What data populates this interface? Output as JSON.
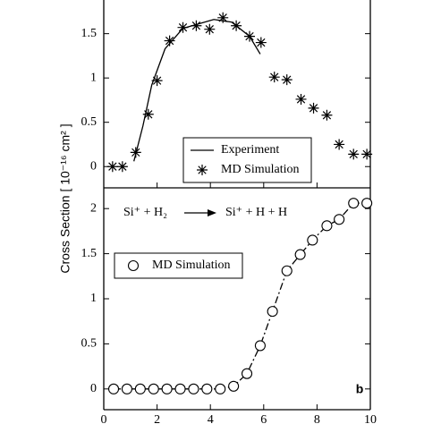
{
  "chart_data": [
    {
      "type": "line",
      "ylabel": "Cross Section [ 10⁻¹⁶ cm² ]",
      "xlim": [
        0,
        10
      ],
      "xticks": [
        0,
        2,
        4,
        6,
        8,
        10
      ],
      "show_xtick_labels": false,
      "ylim": [
        -0.24,
        1.88
      ],
      "yticks": [
        0,
        0.5,
        1,
        1.5
      ],
      "legend": "lower right",
      "series": [
        {
          "name": "Experiment",
          "color": "#000000",
          "marker": "none",
          "line": "solid",
          "x": [
            1.13,
            1.47,
            1.8,
            2.3,
            2.97,
            4.13,
            4.8,
            5.47,
            5.87
          ],
          "values": [
            0.06,
            0.46,
            0.92,
            1.33,
            1.56,
            1.66,
            1.63,
            1.47,
            1.27
          ]
        },
        {
          "name": "MD Simulation",
          "color": "#000000",
          "marker": "star",
          "line": "none",
          "x": [
            0.33,
            0.7,
            1.2,
            1.67,
            2.0,
            2.47,
            2.97,
            3.47,
            3.97,
            4.47,
            4.97,
            5.47,
            5.9,
            6.4,
            6.87,
            7.4,
            7.87,
            8.37,
            8.83,
            9.37,
            9.87
          ],
          "values": [
            0,
            0,
            0.16,
            0.59,
            0.97,
            1.42,
            1.57,
            1.59,
            1.55,
            1.68,
            1.59,
            1.47,
            1.4,
            1.01,
            0.98,
            0.76,
            0.66,
            0.58,
            0.25,
            0.14,
            0.14
          ]
        }
      ]
    },
    {
      "type": "line",
      "panel_label": "b",
      "reaction": {
        "reactants": "Si⁺ + H₂",
        "products": "Si⁺ + H + H"
      },
      "xlim": [
        0,
        10
      ],
      "xticks": [
        0,
        2,
        4,
        6,
        8,
        10
      ],
      "show_xtick_labels": true,
      "ylim": [
        -0.23,
        2.23
      ],
      "yticks": [
        0,
        0.5,
        1,
        1.5,
        2
      ],
      "legend": "upper left",
      "series": [
        {
          "name": "MD Simulation",
          "color": "#000000",
          "marker": "circle",
          "line": "dashdot",
          "x": [
            0.37,
            0.87,
            1.37,
            1.87,
            2.37,
            2.87,
            3.37,
            3.87,
            4.37,
            4.87,
            5.37,
            5.87,
            6.33,
            6.87,
            7.37,
            7.83,
            8.37,
            8.83,
            9.37,
            9.87
          ],
          "values": [
            0,
            0,
            0,
            0,
            0,
            0,
            0,
            0,
            0,
            0.03,
            0.17,
            0.48,
            0.86,
            1.31,
            1.49,
            1.65,
            1.81,
            1.88,
            2.06,
            2.06
          ]
        }
      ]
    }
  ]
}
